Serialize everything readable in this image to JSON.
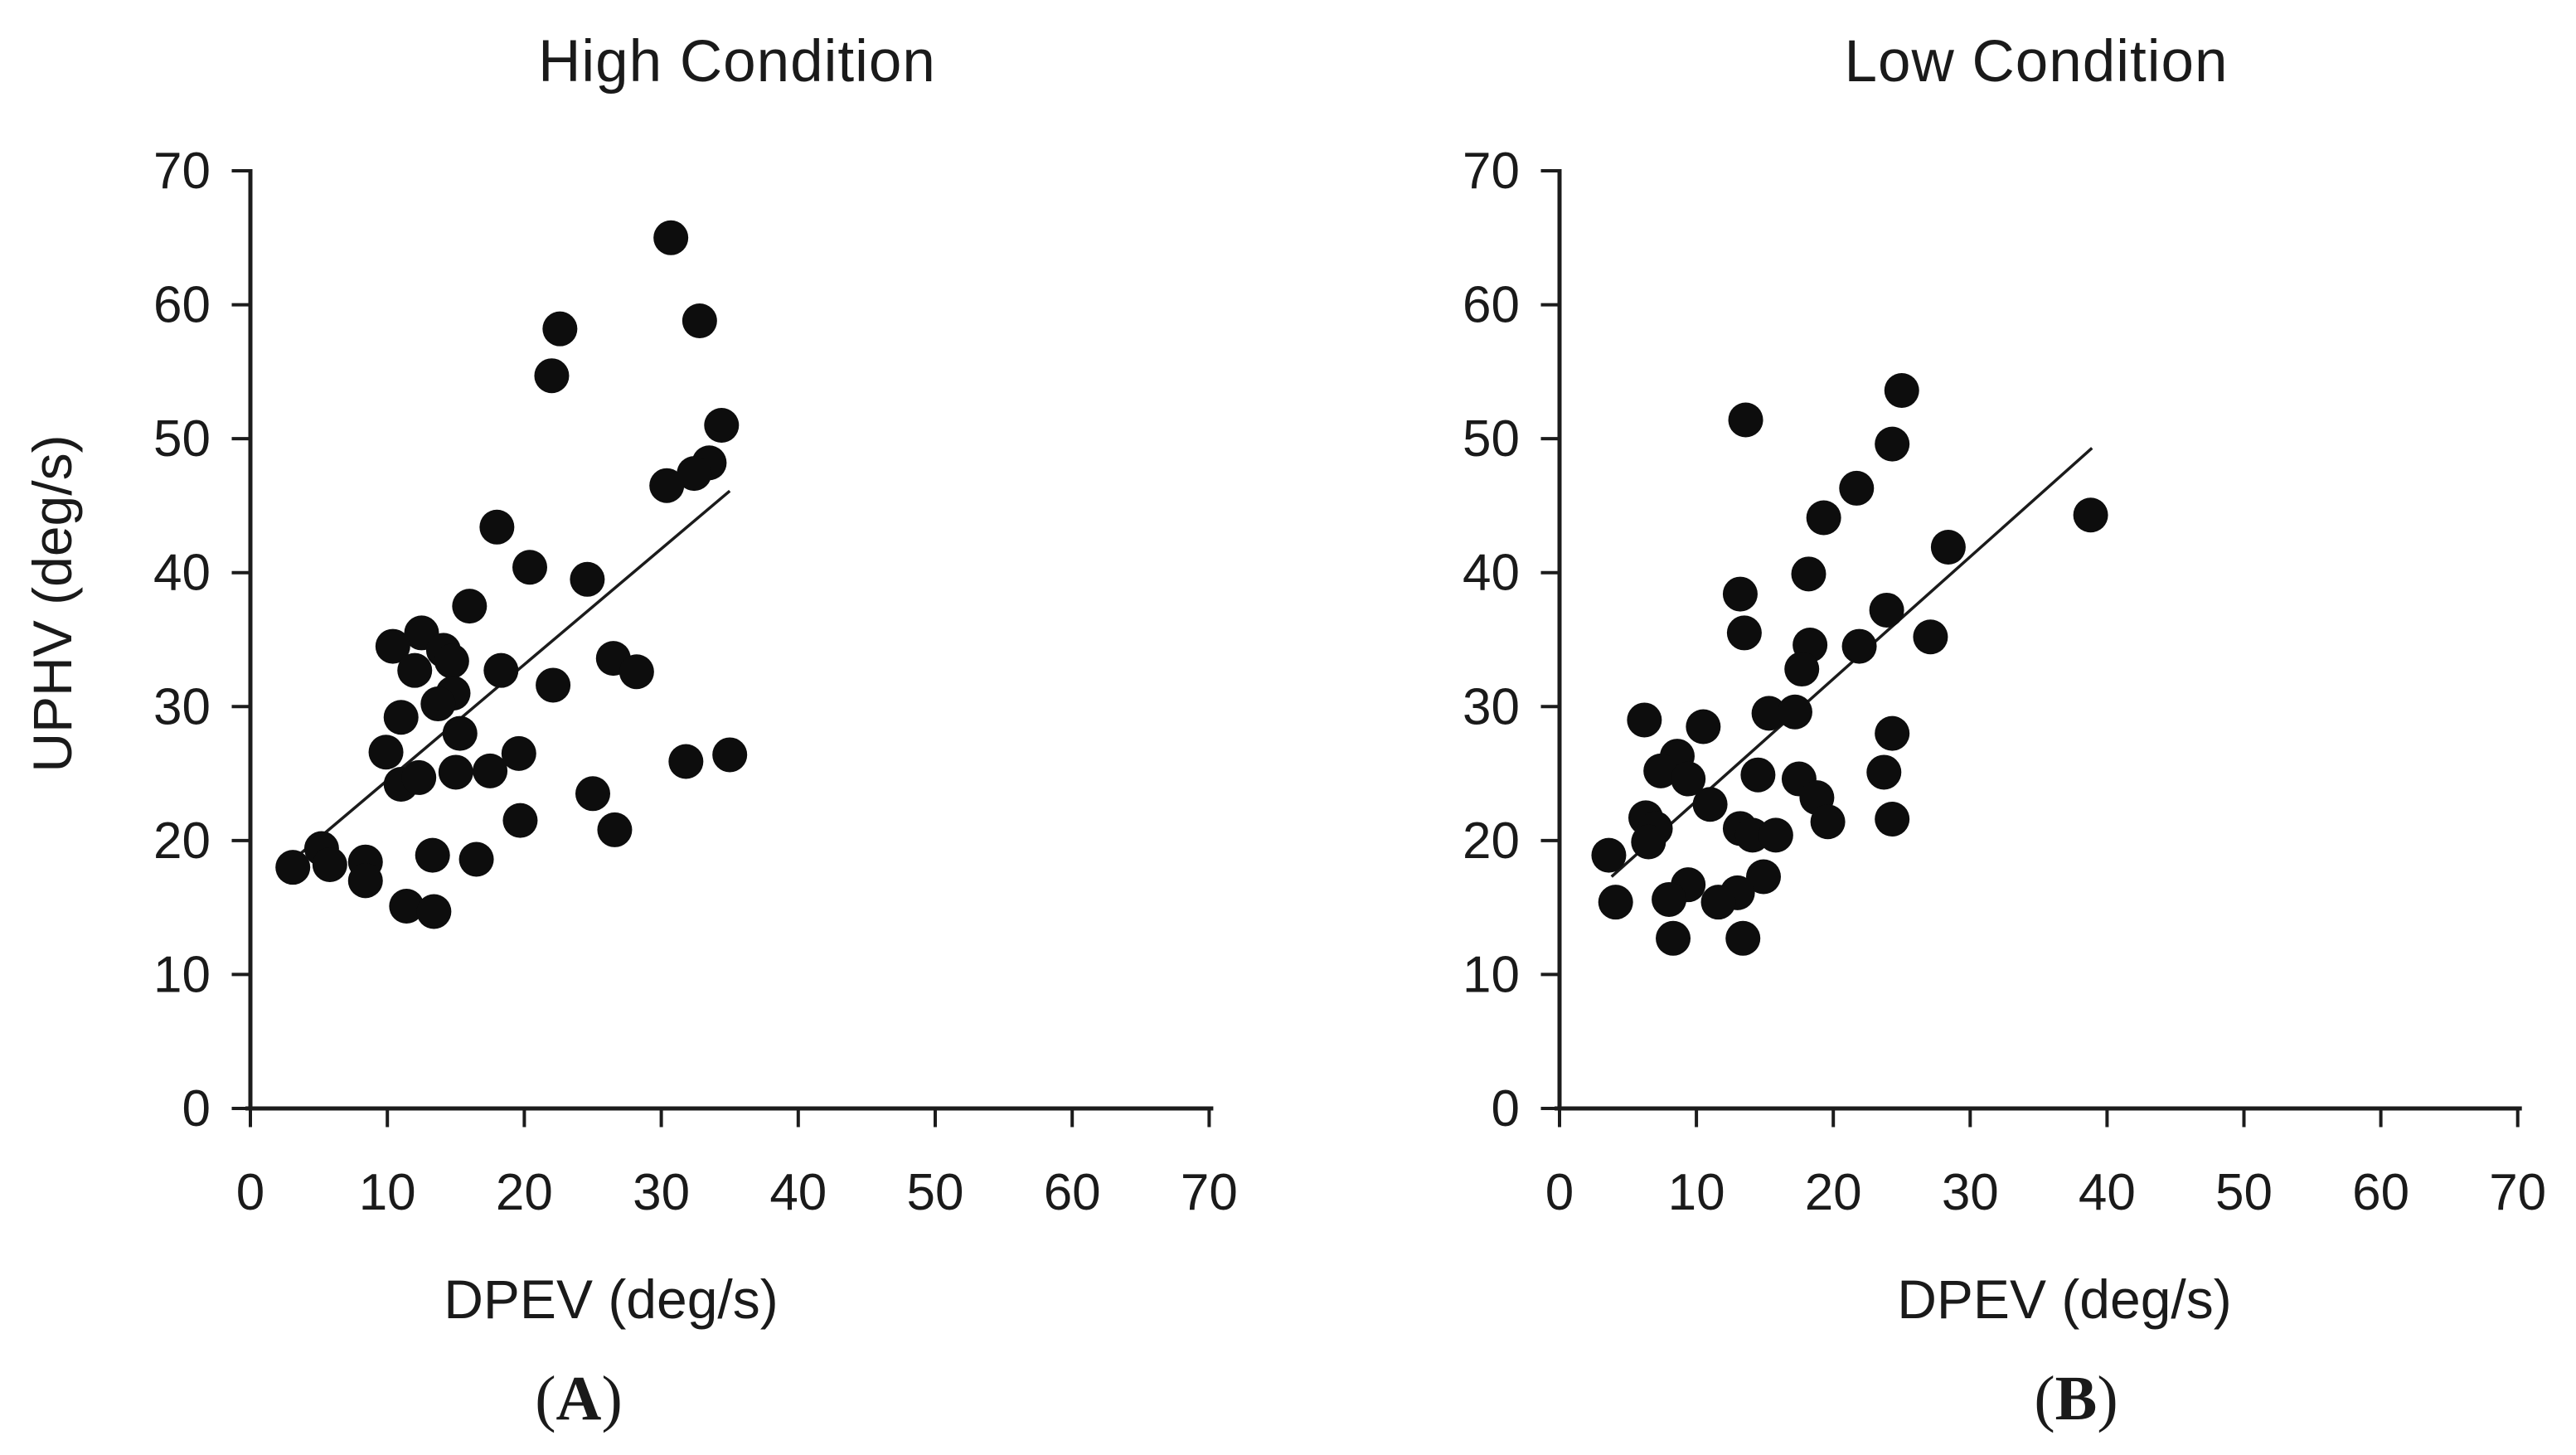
{
  "figure": {
    "background": "#ffffff",
    "marker_color": "#0d0d0d",
    "axis_color": "#1c1c1c",
    "trend_line_color": "#1b1b1b"
  },
  "chart_data": [
    {
      "type": "scatter",
      "title": "High Condition",
      "xlabel": "DPEV (deg/s)",
      "ylabel": "UPHV (deg/s)",
      "caption_open": "(",
      "caption_letter": "A",
      "caption_close": ")",
      "xlim": [
        0,
        70
      ],
      "ylim": [
        0,
        70
      ],
      "xticks": [
        0,
        10,
        20,
        30,
        40,
        50,
        60,
        70
      ],
      "yticks": [
        0,
        10,
        20,
        30,
        40,
        50,
        60,
        70
      ],
      "grid": false,
      "legend": null,
      "points": [
        [
          30.7,
          65.0
        ],
        [
          32.8,
          58.8
        ],
        [
          22.6,
          58.2
        ],
        [
          22.0,
          54.7
        ],
        [
          34.4,
          51.0
        ],
        [
          33.5,
          48.2
        ],
        [
          32.4,
          47.4
        ],
        [
          30.4,
          46.5
        ],
        [
          18.0,
          43.4
        ],
        [
          20.4,
          40.4
        ],
        [
          24.6,
          39.5
        ],
        [
          16.0,
          37.5
        ],
        [
          12.5,
          35.5
        ],
        [
          10.4,
          34.5
        ],
        [
          14.1,
          34.2
        ],
        [
          14.7,
          33.4
        ],
        [
          12.0,
          32.7
        ],
        [
          18.3,
          32.7
        ],
        [
          26.5,
          33.6
        ],
        [
          28.2,
          32.6
        ],
        [
          22.1,
          31.6
        ],
        [
          14.8,
          31.0
        ],
        [
          13.7,
          30.2
        ],
        [
          11.0,
          29.2
        ],
        [
          15.3,
          28.0
        ],
        [
          9.9,
          26.6
        ],
        [
          19.6,
          26.5
        ],
        [
          31.8,
          25.9
        ],
        [
          35.0,
          26.4
        ],
        [
          15.0,
          25.1
        ],
        [
          17.5,
          25.2
        ],
        [
          11.0,
          24.2
        ],
        [
          12.3,
          24.7
        ],
        [
          25.0,
          23.5
        ],
        [
          19.7,
          21.5
        ],
        [
          26.6,
          20.8
        ],
        [
          5.2,
          19.4
        ],
        [
          5.8,
          18.2
        ],
        [
          3.1,
          18.0
        ],
        [
          8.4,
          18.4
        ],
        [
          8.4,
          17.0
        ],
        [
          13.3,
          18.9
        ],
        [
          16.5,
          18.6
        ],
        [
          11.4,
          15.1
        ],
        [
          13.4,
          14.7
        ]
      ],
      "trend_line": {
        "x1": 3.4,
        "y1": 18.8,
        "x2": 35.0,
        "y2": 46.1
      }
    },
    {
      "type": "scatter",
      "title": "Low Condition",
      "xlabel": "DPEV (deg/s)",
      "ylabel": null,
      "caption_open": "(",
      "caption_letter": "B",
      "caption_close": ")",
      "xlim": [
        0,
        70
      ],
      "ylim": [
        0,
        70
      ],
      "xticks": [
        0,
        10,
        20,
        30,
        40,
        50,
        60,
        70
      ],
      "yticks": [
        0,
        10,
        20,
        30,
        40,
        50,
        60,
        70
      ],
      "grid": false,
      "legend": null,
      "points": [
        [
          25.0,
          53.6
        ],
        [
          13.6,
          51.4
        ],
        [
          24.3,
          49.6
        ],
        [
          21.7,
          46.3
        ],
        [
          38.8,
          44.3
        ],
        [
          19.3,
          44.1
        ],
        [
          28.4,
          41.9
        ],
        [
          18.2,
          39.9
        ],
        [
          13.2,
          38.4
        ],
        [
          23.9,
          37.2
        ],
        [
          13.5,
          35.5
        ],
        [
          27.1,
          35.2
        ],
        [
          18.3,
          34.6
        ],
        [
          21.9,
          34.5
        ],
        [
          17.7,
          32.8
        ],
        [
          15.3,
          29.5
        ],
        [
          17.2,
          29.6
        ],
        [
          6.2,
          29.0
        ],
        [
          10.5,
          28.5
        ],
        [
          24.3,
          28.0
        ],
        [
          8.6,
          26.3
        ],
        [
          7.4,
          25.2
        ],
        [
          9.4,
          24.6
        ],
        [
          14.5,
          24.9
        ],
        [
          17.5,
          24.6
        ],
        [
          23.7,
          25.1
        ],
        [
          18.8,
          23.2
        ],
        [
          11.0,
          22.7
        ],
        [
          6.3,
          21.7
        ],
        [
          19.6,
          21.4
        ],
        [
          24.3,
          21.6
        ],
        [
          7.0,
          20.9
        ],
        [
          13.2,
          20.9
        ],
        [
          14.1,
          20.4
        ],
        [
          15.8,
          20.4
        ],
        [
          6.5,
          19.9
        ],
        [
          3.6,
          18.9
        ],
        [
          14.9,
          17.3
        ],
        [
          9.4,
          16.7
        ],
        [
          13.0,
          16.1
        ],
        [
          8.0,
          15.6
        ],
        [
          4.1,
          15.4
        ],
        [
          11.6,
          15.4
        ],
        [
          8.3,
          12.7
        ],
        [
          13.4,
          12.7
        ]
      ],
      "trend_line": {
        "x1": 3.8,
        "y1": 17.3,
        "x2": 38.9,
        "y2": 49.3
      }
    }
  ]
}
